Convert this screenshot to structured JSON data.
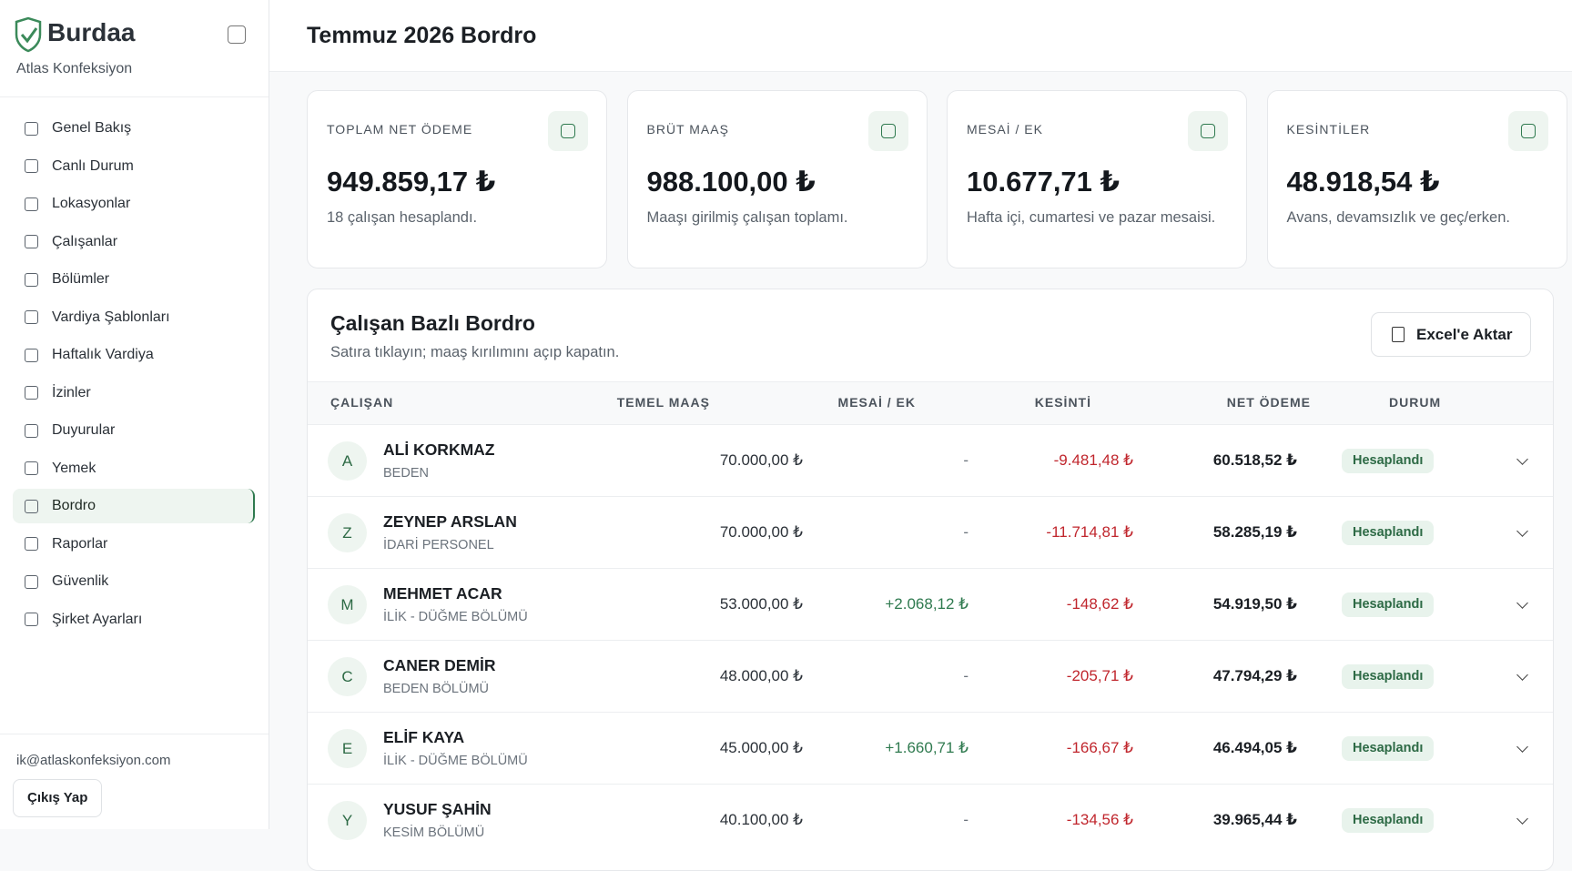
{
  "sidebar": {
    "brand": "Burdaa",
    "company": "Atlas Konfeksiyon",
    "nav": [
      "Genel Bakış",
      "Canlı Durum",
      "Lokasyonlar",
      "Çalışanlar",
      "Bölümler",
      "Vardiya Şablonları",
      "Haftalık Vardiya",
      "İzinler",
      "Duyurular",
      "Yemek",
      "Bordro",
      "Raporlar",
      "Güvenlik",
      "Şirket Ayarları"
    ],
    "active": 10,
    "email": "ik@atlaskonfeksiyon.com",
    "logout": "Çıkış Yap"
  },
  "header": {
    "title": "Temmuz 2026 Bordro"
  },
  "cards": [
    {
      "label": "TOPLAM NET ÖDEME",
      "value": "949.859,17 ₺",
      "note": "18 çalışan hesaplandı."
    },
    {
      "label": "BRÜT MAAŞ",
      "value": "988.100,00 ₺",
      "note": "Maaşı girilmiş çalışan toplamı."
    },
    {
      "label": "MESAİ / EK",
      "value": "10.677,71 ₺",
      "note": "Hafta içi, cumartesi ve pazar mesaisi."
    },
    {
      "label": "KESİNTİLER",
      "value": "48.918,54 ₺",
      "note": "Avans, devamsızlık ve geç/erken."
    }
  ],
  "table": {
    "title": "Çalışan Bazlı Bordro",
    "subtitle": "Satıra tıklayın; maaş kırılımını açıp kapatın.",
    "export": "Excel'e Aktar",
    "columns": [
      "ÇALIŞAN",
      "TEMEL MAAŞ",
      "MESAİ / EK",
      "KESİNTİ",
      "NET ÖDEME",
      "DURUM"
    ],
    "rows": [
      {
        "initial": "A",
        "name": "ALİ KORKMAZ",
        "dept": "BEDEN",
        "base": "70.000,00 ₺",
        "extra": "-",
        "deduction": "-9.481,48 ₺",
        "net": "60.518,52 ₺",
        "status": "Hesaplandı"
      },
      {
        "initial": "Z",
        "name": "ZEYNEP ARSLAN",
        "dept": "İDARİ PERSONEL",
        "base": "70.000,00 ₺",
        "extra": "-",
        "deduction": "-11.714,81 ₺",
        "net": "58.285,19 ₺",
        "status": "Hesaplandı"
      },
      {
        "initial": "M",
        "name": "MEHMET ACAR",
        "dept": "İLİK - DÜĞME BÖLÜMÜ",
        "base": "53.000,00 ₺",
        "extra": "+2.068,12 ₺",
        "deduction": "-148,62 ₺",
        "net": "54.919,50 ₺",
        "status": "Hesaplandı"
      },
      {
        "initial": "C",
        "name": "CANER DEMİR",
        "dept": "BEDEN BÖLÜMÜ",
        "base": "48.000,00 ₺",
        "extra": "-",
        "deduction": "-205,71 ₺",
        "net": "47.794,29 ₺",
        "status": "Hesaplandı"
      },
      {
        "initial": "E",
        "name": "ELİF KAYA",
        "dept": "İLİK - DÜĞME BÖLÜMÜ",
        "base": "45.000,00 ₺",
        "extra": "+1.660,71 ₺",
        "deduction": "-166,67 ₺",
        "net": "46.494,05 ₺",
        "status": "Hesaplandı"
      },
      {
        "initial": "Y",
        "name": "YUSUF ŞAHİN",
        "dept": "KESİM BÖLÜMÜ",
        "base": "40.100,00 ₺",
        "extra": "-",
        "deduction": "-134,56 ₺",
        "net": "39.965,44 ₺",
        "status": "Hesaplandı"
      }
    ]
  }
}
